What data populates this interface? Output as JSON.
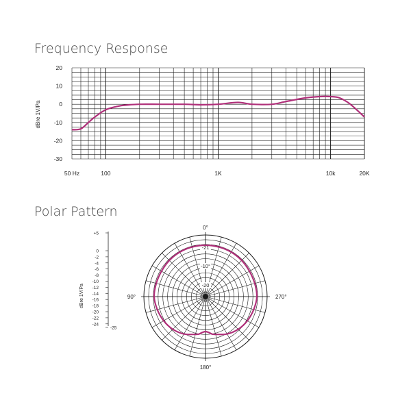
{
  "chart_data": [
    {
      "type": "line",
      "title": "Frequency Response",
      "xlabel": "",
      "ylabel": "dBre 1V/Pa",
      "x_scale": "log",
      "xlim": [
        50,
        20000
      ],
      "ylim": [
        -30,
        20
      ],
      "grid": true,
      "x_ticks": [
        {
          "value": 50,
          "label": "50 Hz"
        },
        {
          "value": 100,
          "label": "100"
        },
        {
          "value": 1000,
          "label": "1K"
        },
        {
          "value": 10000,
          "label": "10k"
        },
        {
          "value": 20000,
          "label": "20K"
        }
      ],
      "y_ticks": [
        {
          "value": 20,
          "label": "20"
        },
        {
          "value": 10,
          "label": "10"
        },
        {
          "value": 0,
          "label": "0"
        },
        {
          "value": -10,
          "label": "-10"
        },
        {
          "value": -20,
          "label": "-20"
        },
        {
          "value": -30,
          "label": "-30"
        }
      ],
      "series": [
        {
          "color": "#b0307a",
          "x": [
            50,
            60,
            70,
            80,
            100,
            130,
            150,
            200,
            300,
            500,
            700,
            1000,
            1500,
            2000,
            3000,
            4000,
            6000,
            8000,
            10000,
            12000,
            15000,
            20000
          ],
          "y": [
            -14,
            -13.5,
            -10,
            -7,
            -3,
            -1,
            -0.5,
            0,
            0,
            0,
            -0.3,
            0,
            1,
            0,
            0,
            1.5,
            3.5,
            4.2,
            4.2,
            3.5,
            0,
            -7
          ]
        }
      ]
    },
    {
      "type": "polar",
      "title": "Polar Pattern",
      "scale_label": "dBre 1V/Pa",
      "scale_ticks": [
        "+5",
        "0",
        "-2",
        "-4",
        "-6",
        "-8",
        "-10",
        "-12",
        "-14",
        "-16",
        "-18",
        "-20",
        "-22",
        "-24",
        "-25"
      ],
      "ring_labels": [
        "-21",
        "-10°",
        "-20"
      ],
      "angle_labels": [
        {
          "angle": 0,
          "label": "0°"
        },
        {
          "angle": 90,
          "label": "90°"
        },
        {
          "angle": 180,
          "label": "180°"
        },
        {
          "angle": 270,
          "label": "270°"
        }
      ],
      "r_range_db": [
        -25,
        5
      ],
      "series": [
        {
          "color": "#b0307a",
          "angles": [
            0,
            15,
            30,
            45,
            60,
            75,
            90,
            105,
            120,
            135,
            150,
            165,
            170,
            175,
            180,
            185,
            190,
            195,
            210,
            225,
            240,
            255,
            270,
            285,
            300,
            315,
            330,
            345
          ],
          "db": [
            0,
            0,
            0,
            -0.1,
            -0.3,
            -0.2,
            0,
            -0.7,
            -1.5,
            -2.5,
            -4,
            -6,
            -6.5,
            -7.5,
            -8,
            -7.5,
            -6.5,
            -6,
            -4,
            -2.5,
            -1.5,
            -0.7,
            0,
            -0.2,
            -0.3,
            -0.1,
            0,
            0
          ]
        }
      ]
    }
  ]
}
